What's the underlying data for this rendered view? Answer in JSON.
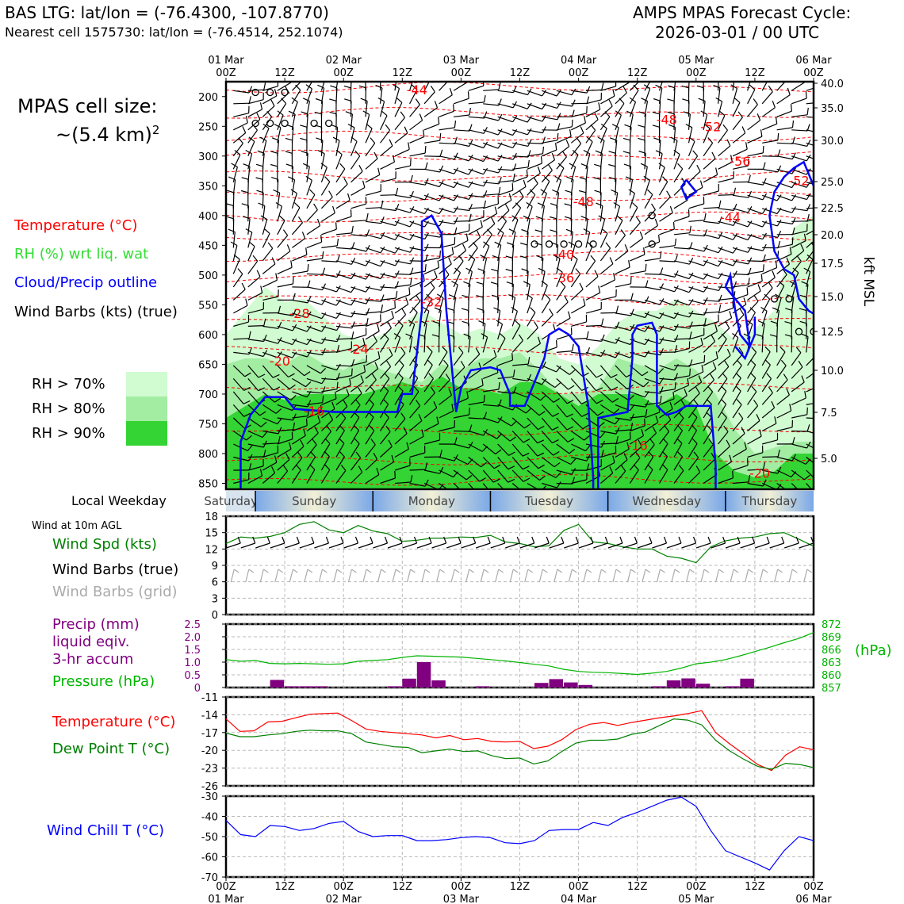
{
  "header": {
    "site_line": "BAS LTG: lat/lon = (-76.4300, -107.8770)",
    "cell_line": "Nearest cell 1575730: lat/lon = (-76.4514, 252.1074)",
    "cycle_title": "AMPS MPAS Forecast Cycle:",
    "cycle_time": "2026-03-01 / 00 UTC"
  },
  "sidebar": {
    "cell_size_label": "MPAS cell size:",
    "cell_size_value": "~(5.4 km)",
    "cell_size_exp": "2",
    "legend": [
      {
        "label": "Temperature (°C)",
        "color": "#ff0000"
      },
      {
        "label": "RH (%) wrt liq. wat",
        "color": "#33dd33"
      },
      {
        "label": "Cloud/Precip outline",
        "color": "#0000ff"
      },
      {
        "label": "Wind Barbs (kts) (true)",
        "color": "#000000"
      }
    ],
    "rh_levels": [
      {
        "label": "RH > 70%",
        "color": "#d1fbd1"
      },
      {
        "label": "RH > 80%",
        "color": "#a2eda2"
      },
      {
        "label": "RH > 90%",
        "color": "#33d433"
      }
    ],
    "weekday_label": "Local Weekday",
    "wind_section_title": "Wind at 10m AGL",
    "wind_labels": [
      {
        "label": "Wind Spd (kts)",
        "color": "#008000"
      },
      {
        "label": "Wind Barbs (true)",
        "color": "#000000"
      },
      {
        "label": "Wind Barbs (grid)",
        "color": "#aaaaaa"
      }
    ],
    "precip_labels": [
      {
        "label": "Precip (mm)",
        "color": "#800080"
      },
      {
        "label": "liquid eqiv.",
        "color": "#800080"
      },
      {
        "label": "3-hr accum",
        "color": "#800080"
      },
      {
        "label": "Pressure (hPa)",
        "color": "#00b400"
      }
    ],
    "temp_labels": [
      {
        "label": "Temperature (°C)",
        "color": "#ff0000"
      },
      {
        "label": "Dew Point T (°C)",
        "color": "#008000"
      }
    ],
    "chill_label": {
      "label": "Wind Chill T (°C)",
      "color": "#0000ff"
    }
  },
  "chart_data": {
    "time_axis": {
      "hours": [
        0,
        12,
        24,
        36,
        48,
        60,
        72,
        84,
        96,
        108,
        120
      ],
      "tick_labels": [
        "00Z",
        "12Z",
        "00Z",
        "12Z",
        "00Z",
        "12Z",
        "00Z",
        "12Z",
        "00Z",
        "12Z",
        "00Z"
      ],
      "date_labels": [
        {
          "hour": 0,
          "label": "01 Mar"
        },
        {
          "hour": 24,
          "label": "02 Mar"
        },
        {
          "hour": 48,
          "label": "03 Mar"
        },
        {
          "hour": 72,
          "label": "04 Mar"
        },
        {
          "hour": 96,
          "label": "05 Mar"
        },
        {
          "hour": 120,
          "label": "06 Mar"
        }
      ],
      "range": [
        0,
        120
      ]
    },
    "sounding": {
      "type": "heatmap",
      "ylabel_right": "kft MSL",
      "pressure_ticks": [
        200,
        250,
        300,
        350,
        400,
        450,
        500,
        550,
        600,
        650,
        700,
        750,
        800,
        850
      ],
      "height_ticks": [
        "40.0",
        "35.0",
        "30.0",
        "25.0",
        "22.5",
        "20.0",
        "17.5",
        "15.0",
        "12.5",
        "10.0",
        "7.5",
        "5.0"
      ],
      "ylim_hpa": [
        175,
        860
      ],
      "temperature_labels": [
        {
          "t": 39,
          "p": 190,
          "label": "-44"
        },
        {
          "t": 90,
          "p": 240,
          "label": "-48"
        },
        {
          "t": 99,
          "p": 252,
          "label": "-52"
        },
        {
          "t": 105,
          "p": 310,
          "label": "-56"
        },
        {
          "t": 117,
          "p": 343,
          "label": "-52"
        },
        {
          "t": 73,
          "p": 378,
          "label": "-48"
        },
        {
          "t": 103,
          "p": 405,
          "label": "-44"
        },
        {
          "t": 69,
          "p": 467,
          "label": "-40"
        },
        {
          "t": 69,
          "p": 506,
          "label": "-36"
        },
        {
          "t": 42,
          "p": 547,
          "label": "-32"
        },
        {
          "t": 15,
          "p": 566,
          "label": "-28"
        },
        {
          "t": 27,
          "p": 626,
          "label": "-24"
        },
        {
          "t": 11,
          "p": 646,
          "label": "-20"
        },
        {
          "t": 18,
          "p": 730,
          "label": "-16"
        },
        {
          "t": 84,
          "p": 788,
          "label": "-16"
        },
        {
          "t": 109,
          "p": 835,
          "label": "-20"
        }
      ]
    },
    "weekday_bar": {
      "days": [
        "Saturday",
        "Sunday",
        "Monday",
        "Tuesday",
        "Wednesday",
        "Thursday"
      ]
    },
    "wind10m": {
      "type": "line",
      "ylim": [
        0,
        18
      ],
      "yticks": [
        "0",
        "3",
        "6",
        "9",
        "12",
        "15",
        "18"
      ],
      "hours": [
        0,
        3,
        6,
        9,
        12,
        15,
        18,
        21,
        24,
        27,
        30,
        33,
        36,
        39,
        42,
        45,
        48,
        51,
        54,
        57,
        60,
        63,
        66,
        69,
        72,
        75,
        78,
        81,
        84,
        87,
        90,
        93,
        96,
        99,
        102,
        105,
        108,
        111,
        114,
        117,
        120
      ],
      "speed_kts": [
        13,
        14.2,
        14,
        14.3,
        15,
        16.5,
        17,
        15.5,
        15,
        16.3,
        15.3,
        14.8,
        13.4,
        13.6,
        14,
        14,
        14.2,
        14.1,
        14.5,
        13.3,
        13,
        12.4,
        12.6,
        15.4,
        16.5,
        13.3,
        13,
        12.4,
        12,
        12,
        10.7,
        10.3,
        9.5,
        12.4,
        13.5,
        14,
        14.2,
        14.8,
        15,
        13.8,
        12.5
      ]
    },
    "precip_pressure": {
      "type": "bar",
      "precip_ylim": [
        0,
        2.5
      ],
      "precip_yticks": [
        "0",
        "0.5",
        "1.0",
        "1.5",
        "2.0",
        "2.5"
      ],
      "pressure_ylim": [
        857,
        872
      ],
      "pressure_yticks": [
        "857",
        "860",
        "863",
        "866",
        "869",
        "872"
      ],
      "pressure_unit": "(hPa)",
      "precip_mm": [
        0,
        0,
        0,
        0.3,
        0.05,
        0.05,
        0.05,
        0,
        0,
        0,
        0,
        0.05,
        0.35,
        1.0,
        0.28,
        0,
        0,
        0.05,
        0,
        0,
        0,
        0.18,
        0.33,
        0.2,
        0.1,
        0,
        0,
        0,
        0,
        0.05,
        0.28,
        0.36,
        0.15,
        0,
        0.05,
        0.35,
        0,
        0,
        0,
        0,
        0
      ],
      "pressure_hpa": [
        863.6,
        863.2,
        863.4,
        862.7,
        862.6,
        862.7,
        862.6,
        862.5,
        862.6,
        863.2,
        863.4,
        863.6,
        864.1,
        864.5,
        864.4,
        864.3,
        864.2,
        863.9,
        863.6,
        863.3,
        862.9,
        862.5,
        862.1,
        861.3,
        860.8,
        860.6,
        860.5,
        860.3,
        860.1,
        860.4,
        860.8,
        861.6,
        862.6,
        863.0,
        863.6,
        864.5,
        865.5,
        866.5,
        867.6,
        868.6,
        870.0
      ]
    },
    "temp_dew": {
      "type": "line",
      "ylim": [
        -26,
        -11
      ],
      "yticks": [
        "-11",
        "-14",
        "-17",
        "-20",
        "-23",
        "-26"
      ],
      "temperature_c": [
        -14.7,
        -16.8,
        -16.7,
        -15.2,
        -15.1,
        -14.5,
        -13.9,
        -13.8,
        -13.7,
        -15.0,
        -16.4,
        -16.8,
        -17.0,
        -17.2,
        -17.4,
        -17.9,
        -17.5,
        -18.2,
        -18.0,
        -18.5,
        -18.6,
        -18.5,
        -19.7,
        -19.3,
        -18.2,
        -16.5,
        -15.6,
        -15.3,
        -15.8,
        -15.3,
        -14.9,
        -14.5,
        -14.2,
        -13.8,
        -13.3,
        -17.0,
        -18.9,
        -20.6,
        -22.4,
        -23.4,
        -20.8,
        -19.4,
        -19.9
      ],
      "dewpoint_c": [
        -17.1,
        -17.7,
        -17.7,
        -17.4,
        -17.2,
        -16.8,
        -16.6,
        -16.7,
        -16.7,
        -17.2,
        -18.6,
        -19.0,
        -19.4,
        -19.5,
        -20.4,
        -20.1,
        -19.8,
        -20.2,
        -20.1,
        -20.9,
        -21.4,
        -21.3,
        -22.3,
        -21.8,
        -20.2,
        -18.8,
        -18.3,
        -18.3,
        -18.1,
        -17.3,
        -16.9,
        -15.8,
        -14.7,
        -14.9,
        -15.7,
        -18.3,
        -20.1,
        -21.5,
        -22.7,
        -23.2,
        -22.2,
        -22.4,
        -22.9
      ]
    },
    "wind_chill": {
      "type": "line",
      "ylim": [
        -70,
        -30
      ],
      "yticks": [
        "-30",
        "-40",
        "-50",
        "-60",
        "-70"
      ],
      "wind_chill_c": [
        -42,
        -49,
        -50,
        -44.5,
        -45,
        -47,
        -46,
        -43.5,
        -42.5,
        -47.5,
        -50,
        -49.5,
        -49.5,
        -52,
        -52,
        -51.5,
        -50.5,
        -50,
        -50.5,
        -53,
        -53.5,
        -52,
        -47,
        -46.5,
        -46.5,
        -43,
        -44.5,
        -40.5,
        -38,
        -35,
        -32,
        -30.5,
        -35,
        -47,
        -57,
        -60,
        -63,
        -66.5,
        -57,
        -50,
        -52
      ]
    }
  }
}
